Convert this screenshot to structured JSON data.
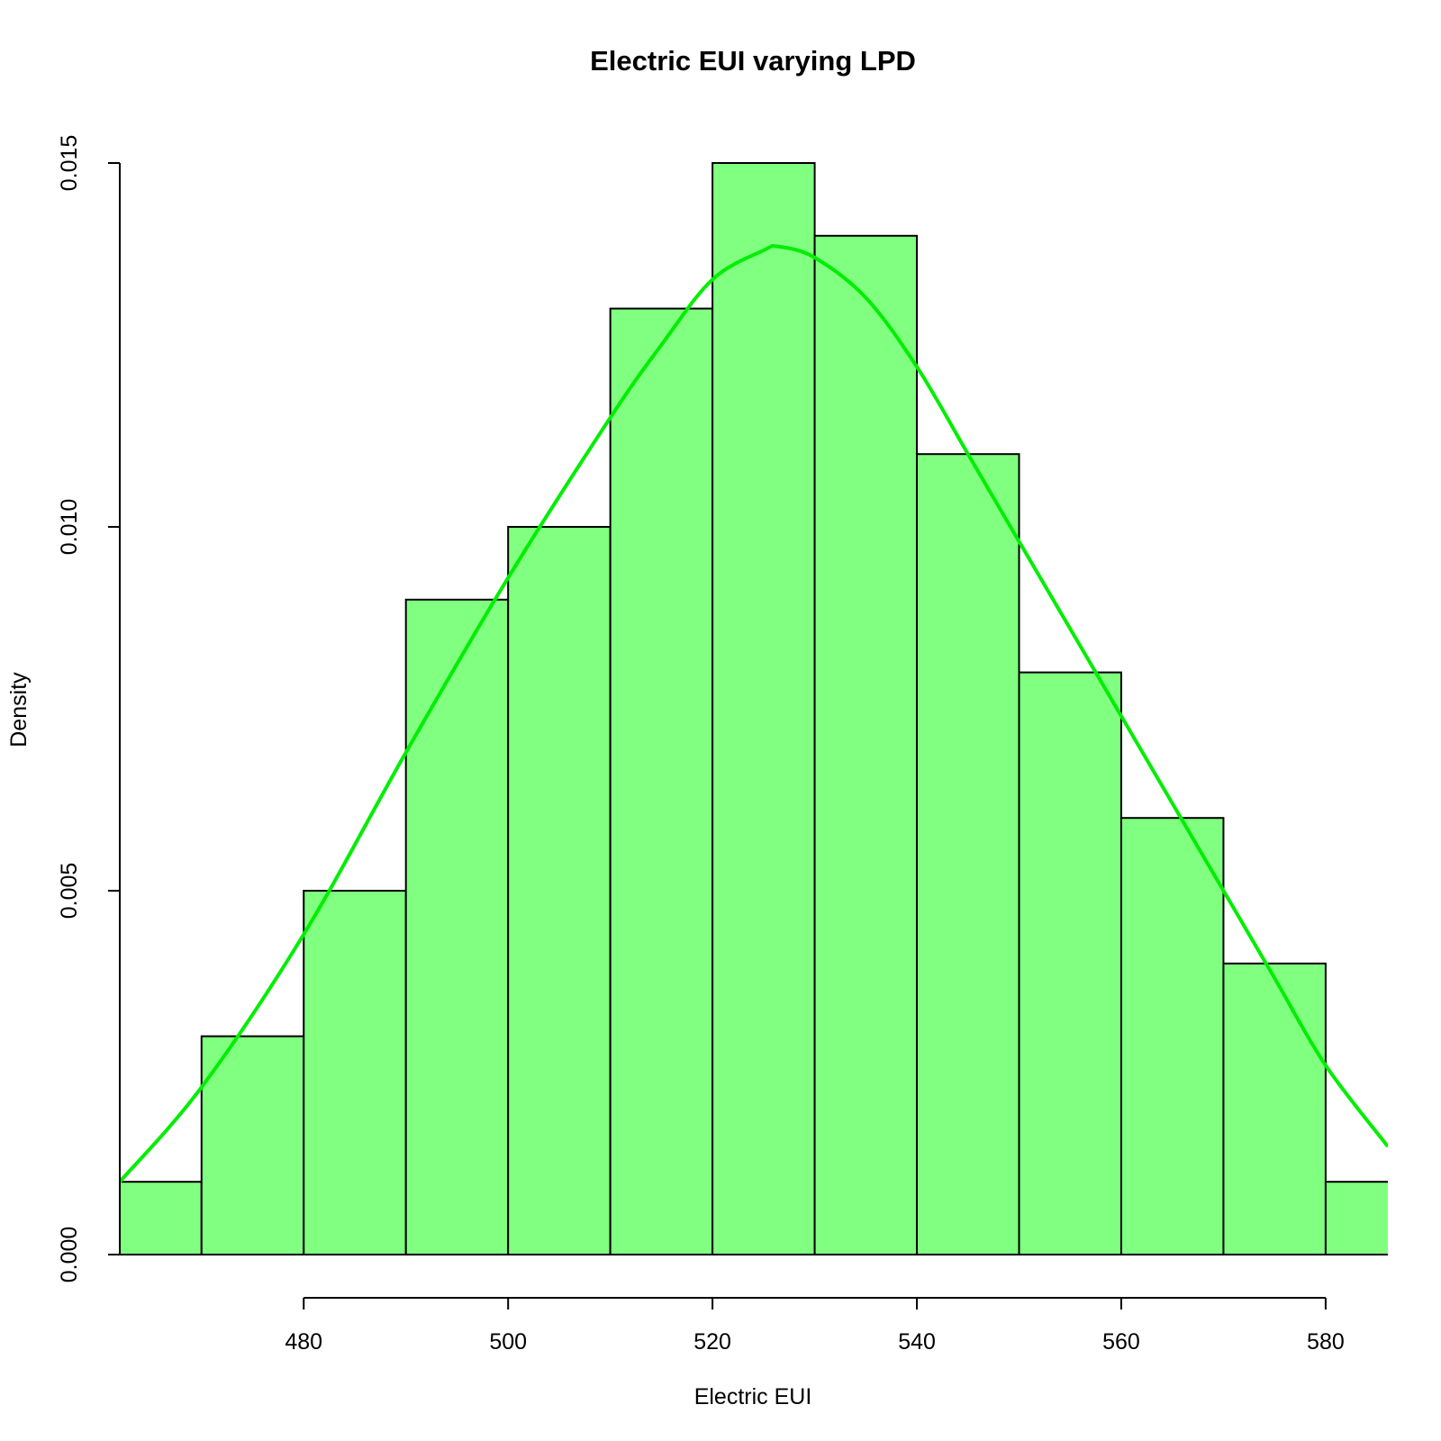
{
  "chart_data": {
    "type": "bar",
    "subtype": "histogram",
    "title": "Electric EUI varying LPD",
    "xlabel": "Electric EUI",
    "ylabel": "Density",
    "xlim": [
      462,
      586
    ],
    "ylim": [
      0,
      0.015
    ],
    "bins": [
      {
        "start": 460,
        "end": 470,
        "density": 0.001
      },
      {
        "start": 470,
        "end": 480,
        "density": 0.003
      },
      {
        "start": 480,
        "end": 490,
        "density": 0.005
      },
      {
        "start": 490,
        "end": 500,
        "density": 0.009
      },
      {
        "start": 500,
        "end": 510,
        "density": 0.01
      },
      {
        "start": 510,
        "end": 520,
        "density": 0.013
      },
      {
        "start": 520,
        "end": 530,
        "density": 0.015
      },
      {
        "start": 530,
        "end": 540,
        "density": 0.014
      },
      {
        "start": 540,
        "end": 550,
        "density": 0.011
      },
      {
        "start": 550,
        "end": 560,
        "density": 0.008
      },
      {
        "start": 560,
        "end": 570,
        "density": 0.006
      },
      {
        "start": 570,
        "end": 580,
        "density": 0.004
      },
      {
        "start": 580,
        "end": 590,
        "density": 0.001
      }
    ],
    "x_ticks": [
      480,
      500,
      520,
      540,
      560,
      580
    ],
    "x_tick_labels": [
      "480",
      "500",
      "520",
      "540",
      "560",
      "580"
    ],
    "y_ticks": [
      0,
      0.005,
      0.01,
      0.015
    ],
    "y_tick_labels": [
      "0.000",
      "0.005",
      "0.010",
      "0.015"
    ],
    "density_curve": {
      "x": [
        462,
        470,
        480,
        490,
        500,
        510,
        515,
        520,
        525,
        526.5,
        530,
        535,
        540,
        545,
        550,
        560,
        570,
        575,
        580,
        586
      ],
      "y": [
        0.001,
        0.0023,
        0.0044,
        0.0069,
        0.0093,
        0.0115,
        0.0125,
        0.0134,
        0.0138,
        0.01385,
        0.0137,
        0.01315,
        0.0122,
        0.011,
        0.0098,
        0.0074,
        0.005,
        0.0038,
        0.0026,
        0.0015
      ]
    },
    "colors": {
      "bar_fill": "#80ff80",
      "bar_stroke": "#000000",
      "curve": "#00ee00"
    },
    "grid": false,
    "legend": "none"
  }
}
